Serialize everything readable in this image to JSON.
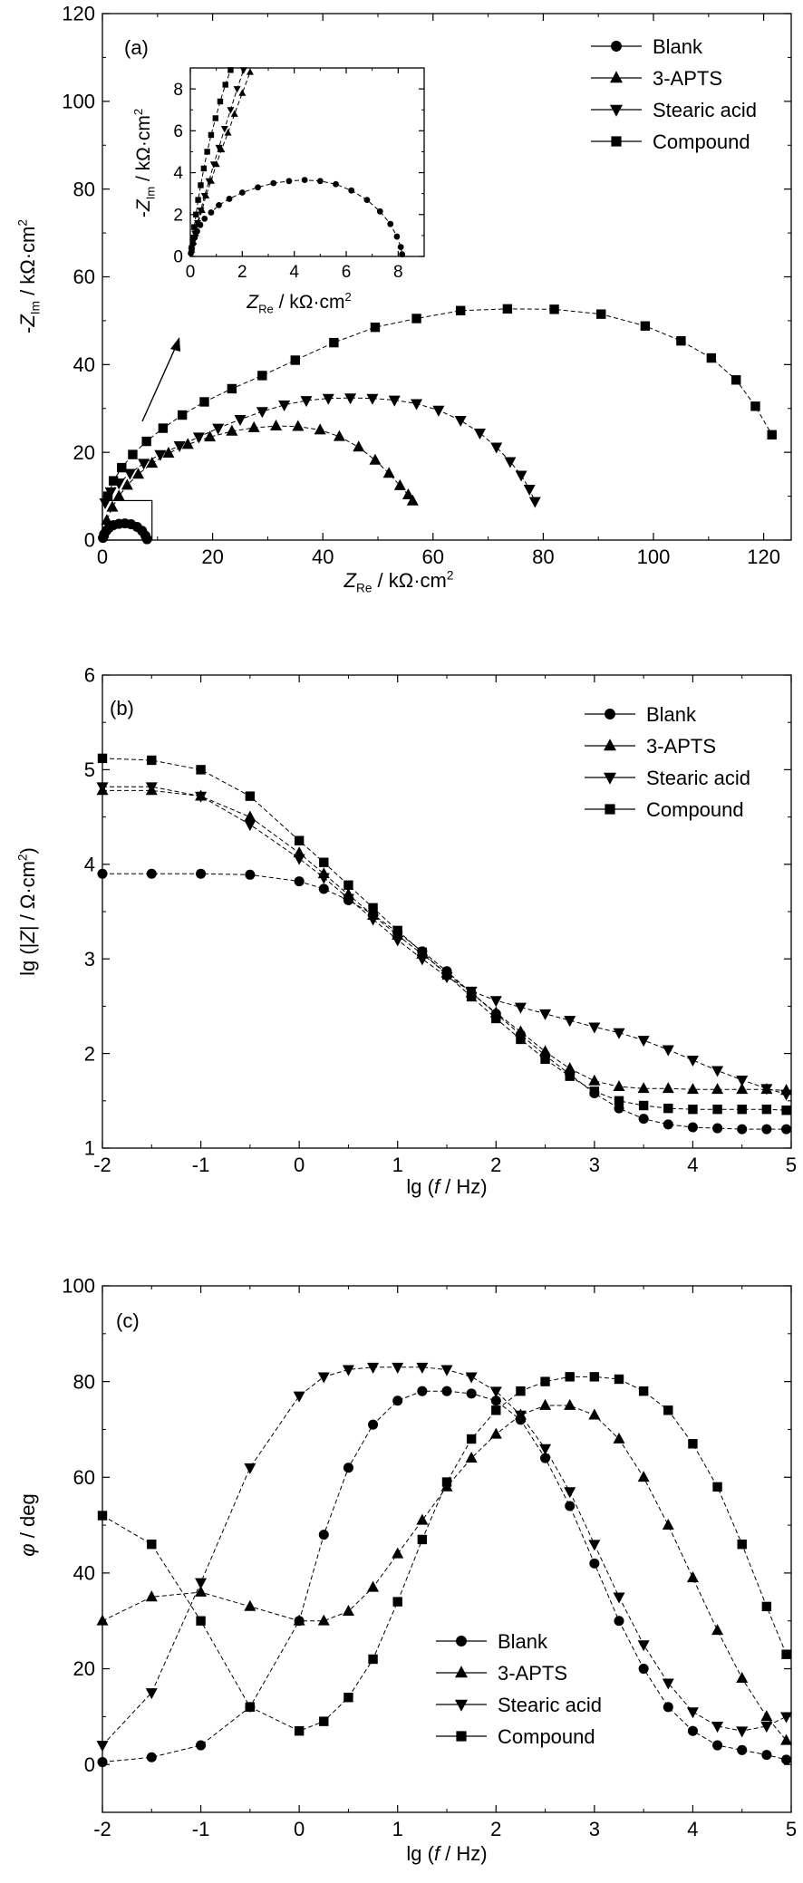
{
  "chart_data": [
    {
      "panel": "(a)",
      "type": "scatter",
      "xlabel": "Z_Re / kΩ·cm²",
      "ylabel": "-Z_Im / kΩ·cm²",
      "xlim": [
        0,
        125
      ],
      "ylim": [
        0,
        120
      ],
      "xticks": [
        0,
        20,
        40,
        60,
        80,
        100,
        120
      ],
      "yticks": [
        0,
        20,
        40,
        60,
        80,
        100,
        120
      ],
      "legend": [
        "Blank",
        "3-APTS",
        "Stearic acid",
        "Compound"
      ],
      "legend_position": "top-right",
      "annotation": "arrow",
      "series": [
        {
          "name": "Blank",
          "marker": "circle",
          "x": [
            0.1,
            0.3,
            0.7,
            1.2,
            2.0,
            3.0,
            4.1,
            5.2,
            6.3,
            7.2,
            7.8,
            8.1
          ],
          "y": [
            0.5,
            1.3,
            2.1,
            2.8,
            3.4,
            3.7,
            3.8,
            3.6,
            3.0,
            2.1,
            1.0,
            0.2
          ]
        },
        {
          "name": "3-APTS",
          "marker": "triangle-up",
          "x": [
            0.2,
            0.8,
            1.8,
            3.0,
            4.5,
            6.5,
            9.0,
            12.0,
            15.5,
            19.5,
            23.5,
            27.5,
            31.5,
            35.5,
            39.5,
            43.0,
            46.5,
            49.5,
            52.0,
            54.0,
            55.5,
            56.3
          ],
          "y": [
            1.5,
            4.5,
            7.5,
            10.0,
            12.5,
            15.0,
            17.5,
            19.8,
            21.8,
            23.5,
            24.8,
            25.6,
            26.0,
            25.9,
            25.1,
            23.6,
            21.2,
            18.2,
            15.2,
            12.4,
            10.3,
            8.9
          ]
        },
        {
          "name": "Stearic acid",
          "marker": "triangle-down",
          "x": [
            0.5,
            1.5,
            3.0,
            5.0,
            7.5,
            10.5,
            14.0,
            17.5,
            21.0,
            25.0,
            29.0,
            33.0,
            37.0,
            41.0,
            45.0,
            49.0,
            53.0,
            57.0,
            61.0,
            65.0,
            68.5,
            71.5,
            74.0,
            76.0,
            77.5,
            78.5
          ],
          "y": [
            8.5,
            11.0,
            13.0,
            15.2,
            17.5,
            19.5,
            21.5,
            23.5,
            25.5,
            27.5,
            29.3,
            30.8,
            31.8,
            32.3,
            32.4,
            32.3,
            31.9,
            31.1,
            29.6,
            27.3,
            24.4,
            21.2,
            17.9,
            14.8,
            11.6,
            8.8
          ]
        },
        {
          "name": "Compound",
          "marker": "square",
          "x": [
            1.0,
            2.0,
            3.5,
            5.5,
            8.0,
            11.0,
            14.5,
            18.5,
            23.5,
            29.0,
            35.0,
            42.0,
            49.5,
            57.0,
            65.0,
            73.5,
            82.0,
            90.5,
            98.5,
            105.0,
            110.5,
            115.0,
            118.5,
            121.5
          ],
          "y": [
            10.0,
            13.5,
            16.5,
            19.5,
            22.5,
            25.5,
            28.5,
            31.5,
            34.5,
            37.5,
            41.0,
            45.0,
            48.5,
            50.5,
            52.3,
            52.7,
            52.6,
            51.5,
            48.8,
            45.4,
            41.5,
            36.5,
            30.5,
            24.0
          ]
        }
      ],
      "inset": {
        "xlabel": "Z_Re / kΩ·cm²",
        "ylabel": "-Z_Im / kΩ·cm²",
        "xlim": [
          0,
          9
        ],
        "ylim": [
          0,
          9
        ],
        "xticks": [
          0,
          2,
          4,
          6,
          8
        ],
        "yticks": [
          0,
          2,
          4,
          6,
          8
        ],
        "series": [
          {
            "name": "Blank",
            "marker": "circle",
            "x": [
              0.02,
              0.05,
              0.1,
              0.17,
              0.26,
              0.38,
              0.55,
              0.8,
              1.1,
              1.5,
              2.0,
              2.6,
              3.2,
              3.8,
              4.4,
              5.0,
              5.6,
              6.2,
              6.8,
              7.3,
              7.7,
              7.95,
              8.1,
              8.15
            ],
            "y": [
              0.15,
              0.35,
              0.6,
              0.9,
              1.2,
              1.5,
              1.8,
              2.1,
              2.45,
              2.75,
              3.05,
              3.3,
              3.5,
              3.6,
              3.65,
              3.6,
              3.45,
              3.15,
              2.7,
              2.15,
              1.55,
              0.95,
              0.45,
              0.1
            ]
          },
          {
            "name": "3-APTS",
            "marker": "triangle-up",
            "x": [
              0.05,
              0.12,
              0.2,
              0.3,
              0.45,
              0.6,
              0.8,
              1.0,
              1.2,
              1.45,
              1.7,
              2.0,
              2.3
            ],
            "y": [
              0.3,
              0.7,
              1.1,
              1.6,
              2.2,
              2.9,
              3.6,
              4.4,
              5.1,
              5.9,
              6.8,
              7.8,
              8.8
            ]
          },
          {
            "name": "Stearic acid",
            "marker": "triangle-down",
            "x": [
              0.05,
              0.1,
              0.18,
              0.28,
              0.4,
              0.55,
              0.72,
              0.9,
              1.1,
              1.32,
              1.55,
              1.8,
              2.05
            ],
            "y": [
              0.3,
              0.7,
              1.1,
              1.6,
              2.2,
              2.9,
              3.6,
              4.4,
              5.2,
              6.1,
              7.0,
              8.0,
              8.9
            ]
          },
          {
            "name": "Compound",
            "marker": "square",
            "x": [
              0.05,
              0.1,
              0.15,
              0.22,
              0.3,
              0.4,
              0.52,
              0.65,
              0.8,
              0.97,
              1.15,
              1.35,
              1.55
            ],
            "y": [
              0.4,
              0.9,
              1.4,
              2.0,
              2.7,
              3.4,
              4.2,
              5.0,
              5.8,
              6.6,
              7.4,
              8.2,
              8.9
            ]
          }
        ]
      }
    },
    {
      "panel": "(b)",
      "type": "line",
      "xlabel": "lg (f / Hz)",
      "ylabel": "lg (|Z| / Ω·cm²)",
      "xlim": [
        -2,
        5
      ],
      "ylim": [
        1,
        6
      ],
      "xticks": [
        -2,
        -1,
        0,
        1,
        2,
        3,
        4,
        5
      ],
      "yticks": [
        1,
        2,
        3,
        4,
        5,
        6
      ],
      "legend": [
        "Blank",
        "3-APTS",
        "Stearic acid",
        "Compound"
      ],
      "legend_position": "top-right",
      "series": [
        {
          "name": "Blank",
          "marker": "circle",
          "x": [
            -2.0,
            -1.5,
            -1.0,
            -0.5,
            0.0,
            0.25,
            0.5,
            0.75,
            1.0,
            1.25,
            1.5,
            1.75,
            2.0,
            2.25,
            2.5,
            2.75,
            3.0,
            3.25,
            3.5,
            3.75,
            4.0,
            4.25,
            4.5,
            4.75,
            4.95
          ],
          "y": [
            3.9,
            3.9,
            3.9,
            3.89,
            3.82,
            3.74,
            3.62,
            3.47,
            3.28,
            3.08,
            2.87,
            2.64,
            2.42,
            2.2,
            1.98,
            1.78,
            1.58,
            1.42,
            1.31,
            1.25,
            1.22,
            1.21,
            1.2,
            1.2,
            1.2
          ]
        },
        {
          "name": "3-APTS",
          "marker": "triangle-up",
          "x": [
            -2.0,
            -1.5,
            -1.0,
            -0.5,
            0.0,
            0.25,
            0.5,
            0.75,
            1.0,
            1.25,
            1.5,
            1.75,
            2.0,
            2.25,
            2.5,
            2.75,
            3.0,
            3.25,
            3.5,
            3.75,
            4.0,
            4.25,
            4.5,
            4.75,
            4.95
          ],
          "y": [
            4.78,
            4.78,
            4.72,
            4.5,
            4.12,
            3.9,
            3.68,
            3.46,
            3.25,
            3.05,
            2.85,
            2.64,
            2.43,
            2.23,
            2.02,
            1.84,
            1.71,
            1.65,
            1.63,
            1.63,
            1.62,
            1.62,
            1.62,
            1.62,
            1.61
          ]
        },
        {
          "name": "Stearic acid",
          "marker": "triangle-down",
          "x": [
            -2.0,
            -1.5,
            -1.0,
            -0.5,
            0.0,
            0.25,
            0.5,
            0.75,
            1.0,
            1.25,
            1.5,
            1.75,
            2.0,
            2.25,
            2.5,
            2.75,
            3.0,
            3.25,
            3.5,
            3.75,
            4.0,
            4.25,
            4.5,
            4.75,
            4.95
          ],
          "y": [
            4.82,
            4.82,
            4.72,
            4.42,
            4.06,
            3.86,
            3.64,
            3.42,
            3.2,
            3.0,
            2.81,
            2.66,
            2.56,
            2.49,
            2.42,
            2.35,
            2.28,
            2.22,
            2.14,
            2.04,
            1.93,
            1.82,
            1.72,
            1.63,
            1.57
          ]
        },
        {
          "name": "Compound",
          "marker": "square",
          "x": [
            -2.0,
            -1.5,
            -1.0,
            -0.5,
            0.0,
            0.25,
            0.5,
            0.75,
            1.0,
            1.25,
            1.5,
            1.75,
            2.0,
            2.25,
            2.5,
            2.75,
            3.0,
            3.25,
            3.5,
            3.75,
            4.0,
            4.25,
            4.5,
            4.75,
            4.95
          ],
          "y": [
            5.12,
            5.1,
            5.0,
            4.72,
            4.25,
            4.02,
            3.78,
            3.54,
            3.3,
            3.07,
            2.83,
            2.6,
            2.37,
            2.15,
            1.94,
            1.76,
            1.6,
            1.5,
            1.45,
            1.42,
            1.41,
            1.41,
            1.41,
            1.41,
            1.4
          ]
        }
      ]
    },
    {
      "panel": "(c)",
      "type": "line",
      "xlabel": "lg (f / Hz)",
      "ylabel": "φ / deg",
      "xlim": [
        -2,
        5
      ],
      "ylim": [
        -10,
        100
      ],
      "xticks": [
        -2,
        -1,
        0,
        1,
        2,
        3,
        4,
        5
      ],
      "yticks": [
        0,
        20,
        40,
        60,
        80,
        100
      ],
      "legend": [
        "Blank",
        "3-APTS",
        "Stearic acid",
        "Compound"
      ],
      "legend_position": "bottom-center",
      "series": [
        {
          "name": "Blank",
          "marker": "circle",
          "x": [
            -2.0,
            -1.5,
            -1.0,
            -0.5,
            0.0,
            0.25,
            0.5,
            0.75,
            1.0,
            1.25,
            1.5,
            1.75,
            2.0,
            2.25,
            2.5,
            2.75,
            3.0,
            3.25,
            3.5,
            3.75,
            4.0,
            4.25,
            4.5,
            4.75,
            4.95
          ],
          "y": [
            0.5,
            1.5,
            4,
            12,
            30,
            48,
            62,
            71,
            76,
            78,
            78,
            77.5,
            76,
            72,
            64,
            54,
            42,
            30,
            20,
            12,
            7,
            4,
            3,
            2,
            1
          ]
        },
        {
          "name": "3-APTS",
          "marker": "triangle-up",
          "x": [
            -2.0,
            -1.5,
            -1.0,
            -0.5,
            0.0,
            0.25,
            0.5,
            0.75,
            1.0,
            1.25,
            1.5,
            1.75,
            2.0,
            2.25,
            2.5,
            2.75,
            3.0,
            3.25,
            3.5,
            3.75,
            4.0,
            4.25,
            4.5,
            4.75,
            4.95
          ],
          "y": [
            30,
            35,
            36,
            33,
            30,
            30,
            32,
            37,
            44,
            51,
            58,
            64,
            69,
            73,
            75,
            75,
            73,
            68,
            60,
            50,
            39,
            28,
            18,
            10,
            5
          ]
        },
        {
          "name": "Stearic acid",
          "marker": "triangle-down",
          "x": [
            -2.0,
            -1.5,
            -1.0,
            -0.5,
            0.0,
            0.25,
            0.5,
            0.75,
            1.0,
            1.25,
            1.5,
            1.75,
            2.0,
            2.25,
            2.5,
            2.75,
            3.0,
            3.25,
            3.5,
            3.75,
            4.0,
            4.25,
            4.5,
            4.75,
            4.95
          ],
          "y": [
            4,
            15,
            38,
            62,
            77,
            81,
            82.5,
            83,
            83,
            83,
            82.5,
            81,
            78,
            73,
            66,
            57,
            46,
            35,
            25,
            17,
            11,
            8,
            7,
            8,
            10
          ]
        },
        {
          "name": "Compound",
          "marker": "square",
          "x": [
            -2.0,
            -1.5,
            -1.0,
            -0.5,
            0.0,
            0.25,
            0.5,
            0.75,
            1.0,
            1.25,
            1.5,
            1.75,
            2.0,
            2.25,
            2.5,
            2.75,
            3.0,
            3.25,
            3.5,
            3.75,
            4.0,
            4.25,
            4.5,
            4.75,
            4.95
          ],
          "y": [
            52,
            46,
            30,
            12,
            7,
            9,
            14,
            22,
            34,
            47,
            59,
            68,
            74,
            78,
            80,
            81,
            81,
            80.5,
            78,
            74,
            67,
            58,
            46,
            33,
            23
          ]
        }
      ]
    }
  ]
}
